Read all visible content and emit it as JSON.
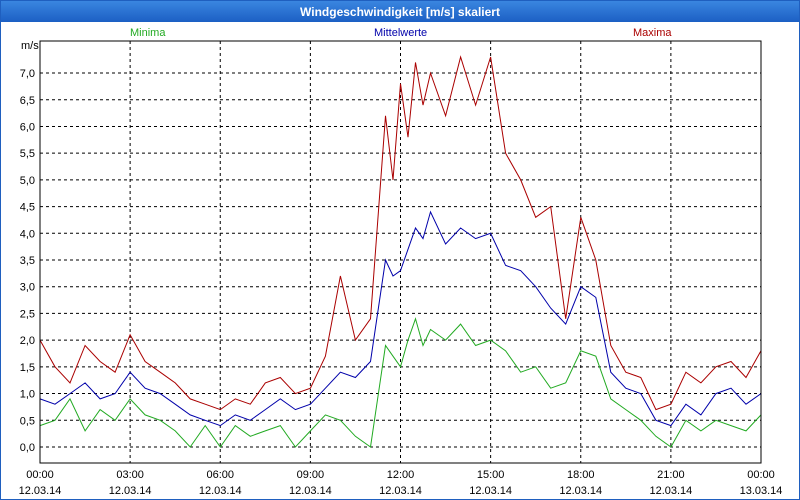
{
  "window": {
    "title": "Windgeschwindigkeit [m/s] skaliert"
  },
  "colors": {
    "minima": "#22aa22",
    "mittel": "#0000aa",
    "maxima": "#aa0000",
    "titlebar": "#1f5fbf"
  },
  "chart_data": {
    "type": "line",
    "title": "Windgeschwindigkeit [m/s] skaliert",
    "ylabel": "m/s",
    "xlabel": "",
    "ylim": [
      -0.3,
      7.6
    ],
    "yticks": [
      0.0,
      0.5,
      1.0,
      1.5,
      2.0,
      2.5,
      3.0,
      3.5,
      4.0,
      4.5,
      5.0,
      5.5,
      6.0,
      6.5,
      7.0
    ],
    "ytick_labels": [
      "0,0",
      "0,5",
      "1,0",
      "1,5",
      "2,0",
      "2,5",
      "3,0",
      "3,5",
      "4,0",
      "4,5",
      "5,0",
      "5,5",
      "6,0",
      "6,5",
      "7,0"
    ],
    "xlim_hours": [
      0,
      24
    ],
    "xtick_hours": [
      0,
      3,
      6,
      9,
      12,
      15,
      18,
      21,
      24
    ],
    "xtick_times": [
      "00:00",
      "03:00",
      "06:00",
      "09:00",
      "12:00",
      "15:00",
      "18:00",
      "21:00",
      "00:00"
    ],
    "xtick_dates": [
      "12.03.14",
      "12.03.14",
      "12.03.14",
      "12.03.14",
      "12.03.14",
      "12.03.14",
      "12.03.14",
      "12.03.14",
      "13.03.14"
    ],
    "legend": {
      "minima": "Minima",
      "mittel": "Mittelwerte",
      "maxima": "Maxima"
    },
    "series": [
      {
        "name": "Maxima",
        "x": [
          0,
          0.5,
          1,
          1.5,
          2,
          2.5,
          3,
          3.5,
          4,
          4.5,
          5,
          5.5,
          6,
          6.5,
          7,
          7.5,
          8,
          8.5,
          9,
          9.5,
          10,
          10.5,
          11,
          11.5,
          11.75,
          12,
          12.25,
          12.5,
          12.75,
          13,
          13.5,
          14,
          14.5,
          15,
          15.5,
          16,
          16.5,
          17,
          17.5,
          18,
          18.5,
          19,
          19.5,
          20,
          20.5,
          21,
          21.5,
          22,
          22.5,
          23,
          23.5,
          24
        ],
        "values": [
          2.0,
          1.5,
          1.2,
          1.9,
          1.6,
          1.4,
          2.1,
          1.6,
          1.4,
          1.2,
          0.9,
          0.8,
          0.7,
          0.9,
          0.8,
          1.2,
          1.3,
          1.0,
          1.1,
          1.7,
          3.2,
          2.0,
          2.4,
          6.2,
          5.0,
          6.8,
          5.8,
          7.2,
          6.4,
          7.0,
          6.2,
          7.3,
          6.4,
          7.3,
          5.5,
          5.0,
          4.3,
          4.5,
          2.4,
          4.3,
          3.5,
          1.9,
          1.4,
          1.3,
          0.7,
          0.8,
          1.4,
          1.2,
          1.5,
          1.6,
          1.3,
          1.8
        ]
      },
      {
        "name": "Mittelwerte",
        "x": [
          0,
          0.5,
          1,
          1.5,
          2,
          2.5,
          3,
          3.5,
          4,
          4.5,
          5,
          5.5,
          6,
          6.5,
          7,
          7.5,
          8,
          8.5,
          9,
          9.5,
          10,
          10.5,
          11,
          11.5,
          11.75,
          12,
          12.25,
          12.5,
          12.75,
          13,
          13.5,
          14,
          14.5,
          15,
          15.5,
          16,
          16.5,
          17,
          17.5,
          18,
          18.5,
          19,
          19.5,
          20,
          20.5,
          21,
          21.5,
          22,
          22.5,
          23,
          23.5,
          24
        ],
        "values": [
          0.9,
          0.8,
          1.0,
          1.2,
          0.9,
          1.0,
          1.4,
          1.1,
          1.0,
          0.8,
          0.6,
          0.5,
          0.4,
          0.6,
          0.5,
          0.7,
          0.9,
          0.7,
          0.8,
          1.1,
          1.4,
          1.3,
          1.6,
          3.5,
          3.2,
          3.3,
          3.7,
          4.1,
          3.9,
          4.4,
          3.8,
          4.1,
          3.9,
          4.0,
          3.4,
          3.3,
          3.0,
          2.6,
          2.3,
          3.0,
          2.8,
          1.4,
          1.1,
          1.0,
          0.5,
          0.4,
          0.8,
          0.6,
          1.0,
          1.1,
          0.8,
          1.0
        ]
      },
      {
        "name": "Minima",
        "x": [
          0,
          0.5,
          1,
          1.5,
          2,
          2.5,
          3,
          3.5,
          4,
          4.5,
          5,
          5.5,
          6,
          6.5,
          7,
          7.5,
          8,
          8.5,
          9,
          9.5,
          10,
          10.5,
          11,
          11.5,
          11.75,
          12,
          12.25,
          12.5,
          12.75,
          13,
          13.5,
          14,
          14.5,
          15,
          15.5,
          16,
          16.5,
          17,
          17.5,
          18,
          18.5,
          19,
          19.5,
          20,
          20.5,
          21,
          21.5,
          22,
          22.5,
          23,
          23.5,
          24
        ],
        "values": [
          0.4,
          0.5,
          0.9,
          0.3,
          0.7,
          0.5,
          0.9,
          0.6,
          0.5,
          0.3,
          0.0,
          0.4,
          0.0,
          0.4,
          0.2,
          0.3,
          0.4,
          0.0,
          0.3,
          0.6,
          0.5,
          0.2,
          0.0,
          1.9,
          1.7,
          1.5,
          2.0,
          2.4,
          1.9,
          2.2,
          2.0,
          2.3,
          1.9,
          2.0,
          1.8,
          1.4,
          1.5,
          1.1,
          1.2,
          1.8,
          1.7,
          0.9,
          0.7,
          0.5,
          0.2,
          0.0,
          0.5,
          0.3,
          0.5,
          0.4,
          0.3,
          0.6
        ]
      }
    ]
  }
}
